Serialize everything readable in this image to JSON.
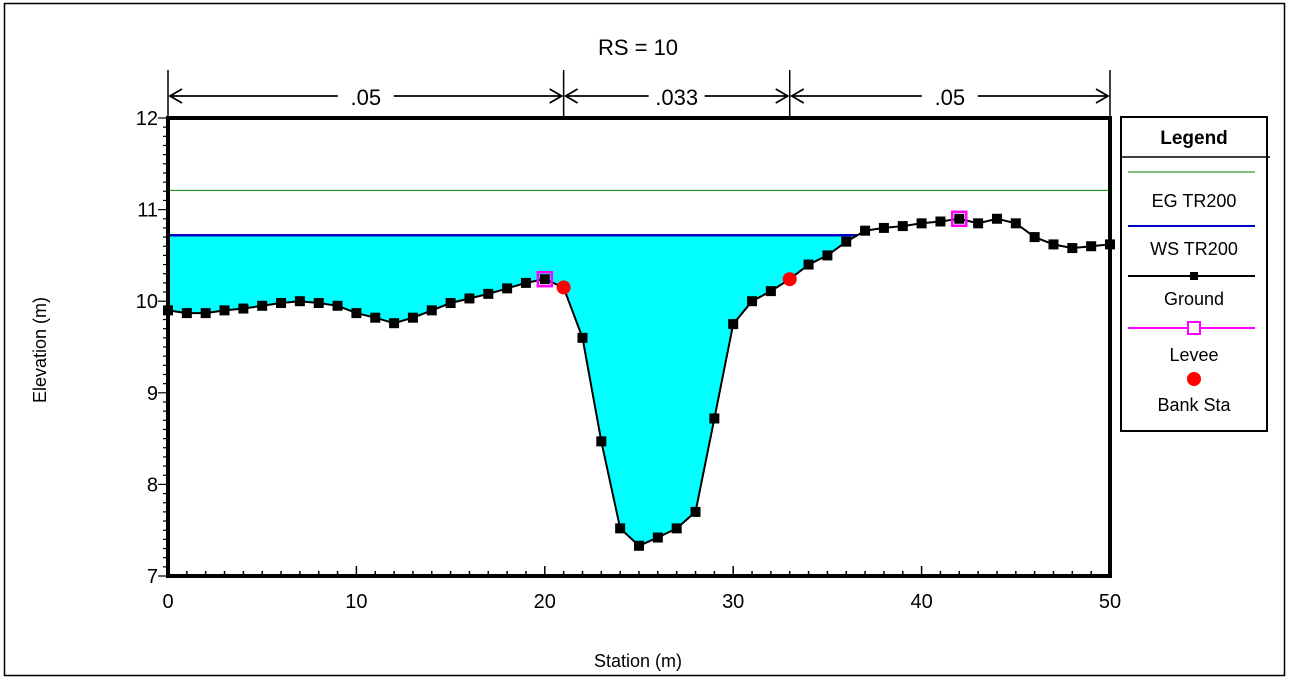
{
  "chart_data": {
    "type": "line",
    "title": "RS = 10",
    "xlabel": "Station (m)",
    "ylabel": "Elevation (m)",
    "xlim": [
      0,
      50
    ],
    "ylim": [
      7,
      12
    ],
    "x_ticks": [
      0,
      10,
      20,
      30,
      40,
      50
    ],
    "y_ticks": [
      7,
      8,
      9,
      10,
      11,
      12
    ],
    "manning_n": [
      {
        "label": ".05",
        "from": 0,
        "to": 21
      },
      {
        "label": ".033",
        "from": 21,
        "to": 33
      },
      {
        "label": ".05",
        "from": 33,
        "to": 50
      }
    ],
    "ground": {
      "x": [
        0,
        1,
        2,
        3,
        4,
        5,
        6,
        7,
        8,
        9,
        10,
        11,
        12,
        13,
        14,
        15,
        16,
        17,
        18,
        19,
        20,
        21,
        22,
        23,
        24,
        25,
        26,
        27,
        28,
        29,
        30,
        31,
        32,
        33,
        34,
        35,
        36,
        37,
        38,
        39,
        40,
        41,
        42,
        43,
        44,
        45,
        46,
        47,
        48,
        49,
        50
      ],
      "y": [
        9.9,
        9.87,
        9.87,
        9.9,
        9.92,
        9.95,
        9.98,
        10.0,
        9.98,
        9.95,
        9.87,
        9.82,
        9.76,
        9.82,
        9.9,
        9.98,
        10.03,
        10.08,
        10.14,
        10.2,
        10.24,
        10.15,
        9.6,
        8.47,
        7.52,
        7.33,
        7.42,
        7.52,
        7.7,
        8.72,
        9.75,
        10.0,
        10.11,
        10.24,
        10.4,
        10.5,
        10.65,
        10.77,
        10.8,
        10.82,
        10.85,
        10.87,
        10.9,
        10.85,
        10.9,
        10.85,
        10.7,
        10.62,
        10.58,
        10.6,
        10.62
      ]
    },
    "ws_elevation": 10.72,
    "eg_elevation": 11.21,
    "levees": [
      {
        "x": 20,
        "y": 10.24
      },
      {
        "x": 42,
        "y": 10.9
      }
    ],
    "bank_stations": [
      {
        "x": 21,
        "y": 10.15
      },
      {
        "x": 33,
        "y": 10.24
      }
    ],
    "colors": {
      "water_fill": "#00ffff",
      "ws_line": "#0000c0",
      "eg_line": "#008000",
      "ground": "#000000",
      "levee": "#ff00ff",
      "bank_sta": "#ff0000"
    },
    "legend": {
      "position": "right",
      "title": "Legend",
      "entries": [
        {
          "name": "EG TR200",
          "style": "eg"
        },
        {
          "name": "WS TR200",
          "style": "ws"
        },
        {
          "name": "Ground",
          "style": "ground"
        },
        {
          "name": "Levee",
          "style": "levee"
        },
        {
          "name": "Bank Sta",
          "style": "bank"
        }
      ]
    }
  }
}
